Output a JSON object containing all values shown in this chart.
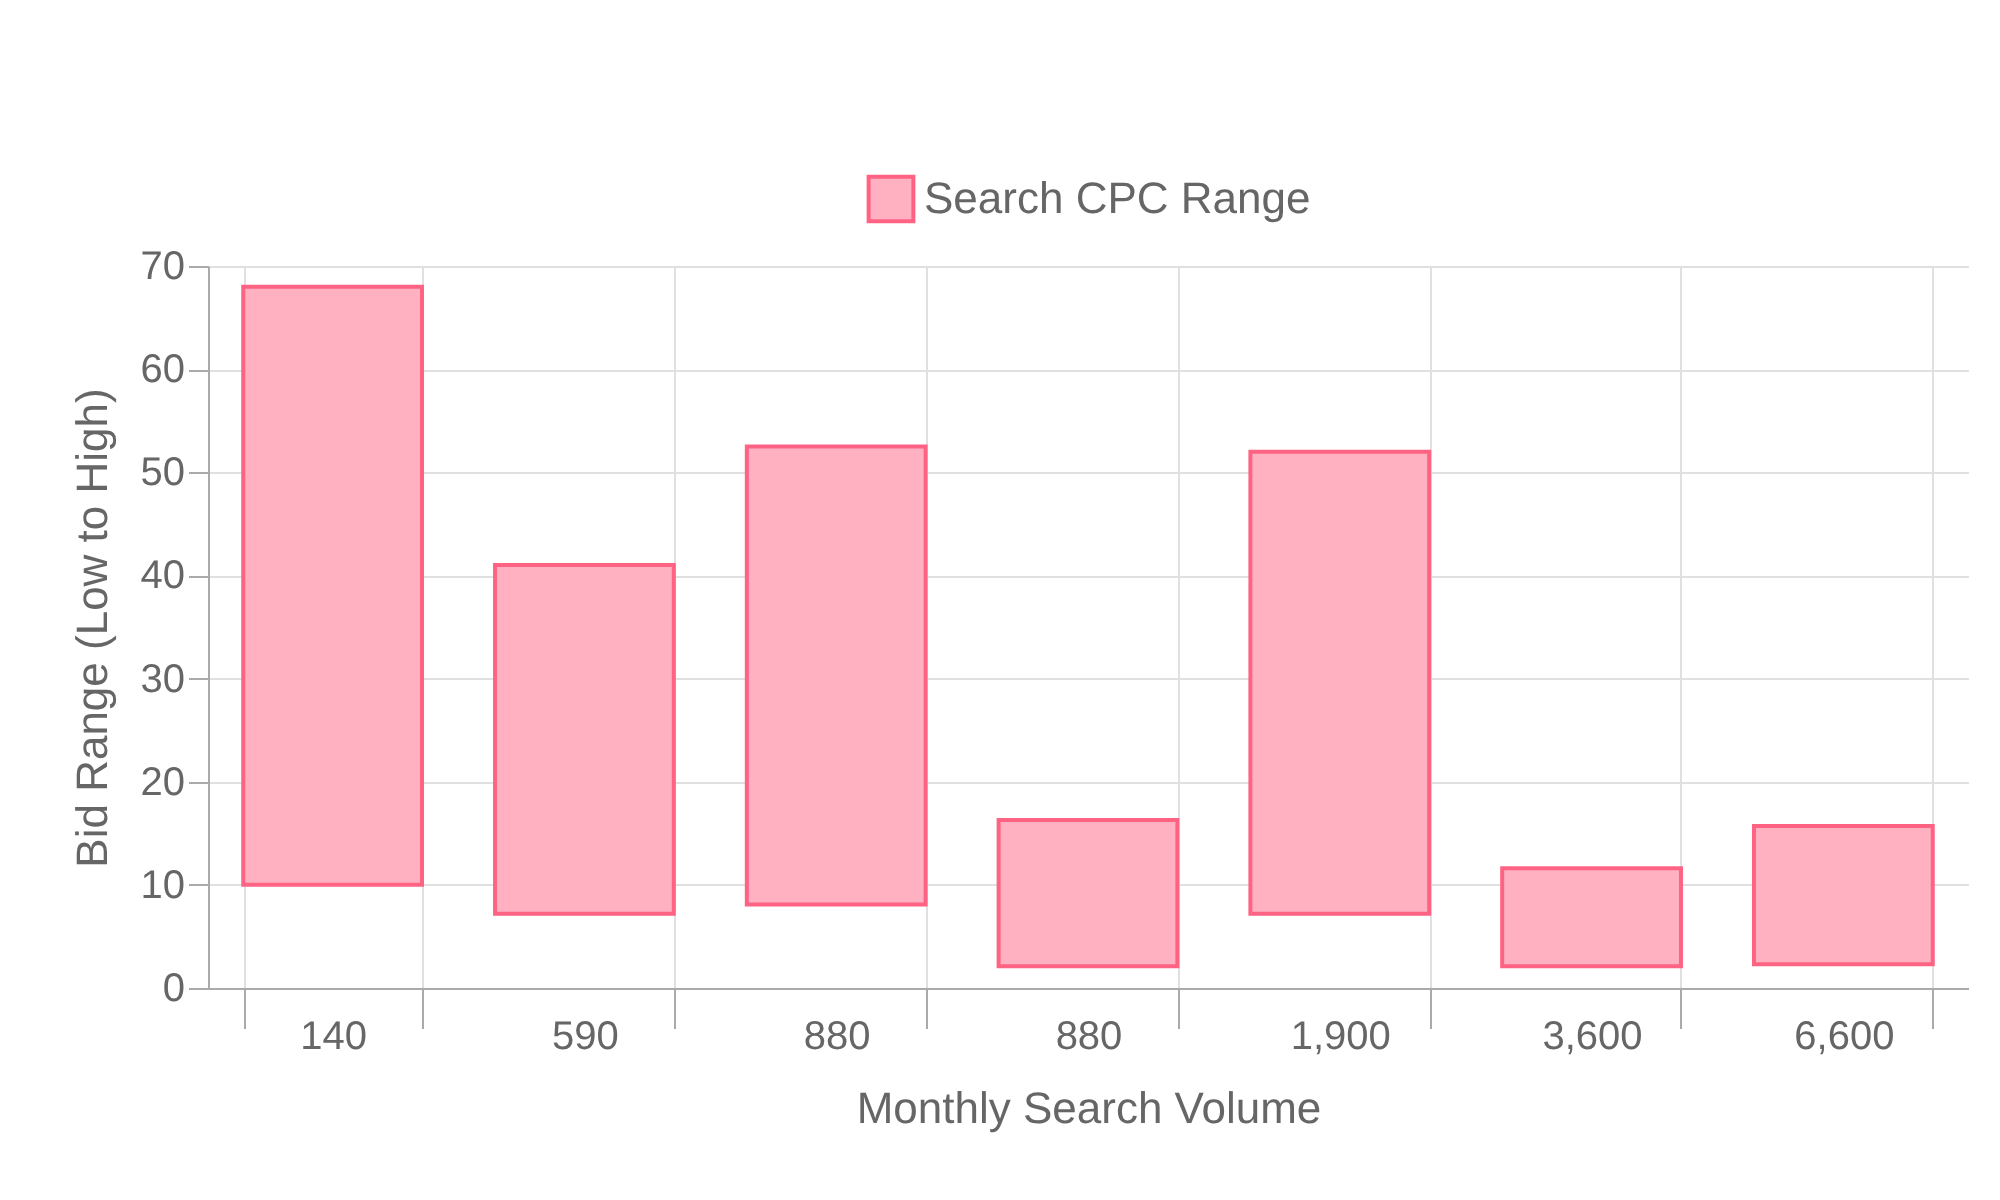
{
  "chart_data": {
    "type": "bar",
    "xlabel": "Monthly Search Volume",
    "ylabel": "Bid Range (Low to High)",
    "categories": [
      "140",
      "590",
      "880",
      "880",
      "1,900",
      "3,600",
      "6,600"
    ],
    "series": [
      {
        "name": "Search CPC Range",
        "color": "#ff6384",
        "base": [
          10,
          7.2,
          8.1,
          2.1,
          7.2,
          2.1,
          2.3
        ],
        "values": [
          58,
          33.8,
          44.4,
          14.2,
          44.8,
          9.5,
          13.4
        ]
      }
    ],
    "ylim": [
      0,
      70
    ],
    "yticks": [
      0,
      10,
      20,
      30,
      40,
      50,
      60,
      70
    ],
    "grid": true,
    "legend": "top"
  }
}
